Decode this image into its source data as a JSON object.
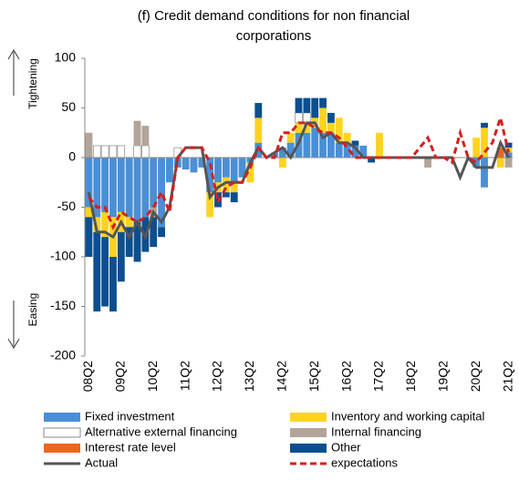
{
  "chart_data": {
    "type": "stacked_bar_line",
    "title_lines": [
      "(f) Credit demand conditions for non financial",
      "corporations"
    ],
    "annotations": {
      "up": "Tightening",
      "down": "Easing"
    },
    "categories": [
      "08Q2",
      null,
      null,
      null,
      "09Q2",
      null,
      null,
      null,
      "10Q2",
      null,
      null,
      null,
      "11Q2",
      null,
      null,
      null,
      "12Q2",
      null,
      null,
      null,
      "13Q2",
      null,
      null,
      null,
      "14Q2",
      null,
      null,
      null,
      "15Q2",
      null,
      null,
      null,
      "16Q2",
      null,
      null,
      null,
      "17Q2",
      null,
      null,
      null,
      "18Q2",
      null,
      null,
      null,
      "19Q2",
      null,
      null,
      null,
      "20Q2",
      null,
      null,
      null,
      "21Q2"
    ],
    "ylim": [
      -200,
      100
    ],
    "yticks": [
      -200,
      -150,
      -100,
      -50,
      0,
      50,
      100
    ],
    "series": [
      {
        "name": "Fixed investment",
        "color": "#4a8fd6",
        "values": [
          -50,
          -60,
          -55,
          -60,
          -55,
          -60,
          -65,
          -60,
          -50,
          -70,
          -25,
          -10,
          -12,
          -15,
          -10,
          -35,
          -25,
          -20,
          -25,
          -20,
          -5,
          15,
          0,
          5,
          10,
          15,
          25,
          25,
          30,
          25,
          25,
          15,
          15,
          12,
          12,
          0,
          0,
          0,
          0,
          0,
          0,
          0,
          0,
          0,
          0,
          0,
          0,
          0,
          -10,
          -30,
          0,
          0,
          5
        ]
      },
      {
        "name": "Inventory and working capital",
        "color": "#ffd320",
        "values": [
          -10,
          -15,
          -25,
          -40,
          -20,
          -10,
          0,
          0,
          0,
          0,
          0,
          0,
          0,
          0,
          0,
          -25,
          -10,
          -15,
          -10,
          0,
          -20,
          25,
          0,
          0,
          -10,
          10,
          10,
          10,
          10,
          25,
          10,
          25,
          10,
          0,
          0,
          0,
          25,
          0,
          0,
          0,
          0,
          0,
          0,
          0,
          0,
          0,
          0,
          0,
          20,
          30,
          0,
          -10,
          5
        ]
      },
      {
        "name": "Alternative external financing",
        "color": "#ffffff",
        "values": [
          0,
          12,
          12,
          12,
          12,
          0,
          12,
          12,
          0,
          0,
          0,
          10,
          0,
          0,
          0,
          0,
          0,
          0,
          0,
          0,
          0,
          0,
          0,
          0,
          0,
          0,
          10,
          10,
          0,
          0,
          0,
          0,
          0,
          0,
          0,
          0,
          0,
          0,
          0,
          0,
          0,
          0,
          0,
          0,
          0,
          0,
          0,
          0,
          0,
          0,
          0,
          0,
          0
        ]
      },
      {
        "name": "Internal financing",
        "color": "#b2a498",
        "values": [
          25,
          0,
          0,
          0,
          0,
          0,
          25,
          20,
          -10,
          0,
          0,
          0,
          0,
          0,
          0,
          0,
          0,
          0,
          0,
          0,
          0,
          0,
          0,
          0,
          0,
          0,
          0,
          0,
          0,
          0,
          0,
          0,
          0,
          0,
          0,
          0,
          0,
          0,
          0,
          0,
          0,
          0,
          -10,
          0,
          0,
          0,
          0,
          0,
          0,
          0,
          0,
          0,
          -10
        ]
      },
      {
        "name": "Interest rate level",
        "color": "#f0641e",
        "values": [
          0,
          0,
          0,
          0,
          0,
          0,
          0,
          0,
          0,
          0,
          0,
          0,
          0,
          0,
          0,
          0,
          0,
          0,
          0,
          0,
          0,
          0,
          0,
          0,
          0,
          0,
          0,
          0,
          0,
          0,
          0,
          0,
          0,
          0,
          0,
          0,
          0,
          0,
          0,
          0,
          0,
          0,
          0,
          0,
          0,
          0,
          0,
          0,
          0,
          0,
          0,
          10,
          0
        ]
      },
      {
        "name": "Other",
        "color": "#0b4f8f",
        "values": [
          -40,
          -80,
          -70,
          -55,
          -50,
          -30,
          -40,
          -35,
          -30,
          -10,
          0,
          0,
          0,
          0,
          0,
          0,
          -15,
          -5,
          -10,
          0,
          0,
          15,
          0,
          0,
          0,
          0,
          15,
          15,
          20,
          10,
          10,
          0,
          0,
          5,
          0,
          -5,
          0,
          0,
          0,
          0,
          0,
          0,
          0,
          0,
          0,
          0,
          0,
          0,
          0,
          5,
          0,
          0,
          5
        ]
      }
    ],
    "lines": [
      {
        "name": "Actual",
        "color": "#555555",
        "dash": false,
        "values": [
          -35,
          -75,
          -75,
          -80,
          -65,
          -80,
          -65,
          -80,
          -55,
          -65,
          -50,
          0,
          10,
          10,
          10,
          -40,
          -30,
          -25,
          -25,
          -25,
          -5,
          10,
          0,
          5,
          10,
          0,
          15,
          35,
          35,
          20,
          25,
          15,
          15,
          10,
          0,
          0,
          0,
          0,
          0,
          0,
          0,
          0,
          0,
          0,
          0,
          0,
          -20,
          0,
          -10,
          -10,
          -10,
          15,
          0
        ]
      },
      {
        "name": "expectations",
        "color": "#d42020",
        "dash": true,
        "values": [
          -40,
          -50,
          -50,
          -70,
          -55,
          -60,
          -65,
          -60,
          -50,
          -35,
          -55,
          0,
          10,
          10,
          10,
          -5,
          -45,
          -30,
          -25,
          -25,
          -10,
          10,
          0,
          0,
          25,
          25,
          35,
          35,
          30,
          25,
          25,
          20,
          10,
          0,
          0,
          0,
          0,
          0,
          0,
          0,
          0,
          10,
          20,
          0,
          0,
          -5,
          25,
          0,
          -5,
          5,
          15,
          40,
          5
        ]
      }
    ]
  }
}
